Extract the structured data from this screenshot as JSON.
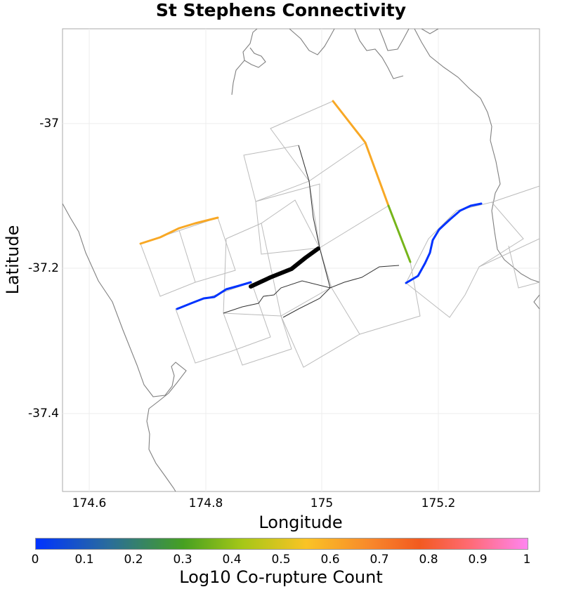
{
  "title": "St Stephens Connectivity",
  "axes": {
    "xlabel": "Longitude",
    "ylabel": "Latitude",
    "xticks": [
      "174.6",
      "174.8",
      "175",
      "175.2"
    ],
    "yticks": [
      "-37",
      "-37.2",
      "-37.4"
    ]
  },
  "colorbar": {
    "label": "Log10 Co-rupture Count",
    "ticks": [
      "0",
      "0.1",
      "0.2",
      "0.3",
      "0.4",
      "0.5",
      "0.6",
      "0.7",
      "0.8",
      "0.9",
      "1"
    ]
  },
  "colors": {
    "coastline": "#808080",
    "fault_outline": "#bbbbbb",
    "fault_trace": "#333333",
    "target_fault": "#000000",
    "level_0": "#0033ff",
    "level_0_6": "#f8a825",
    "level_0_35": "#76b51a"
  }
}
